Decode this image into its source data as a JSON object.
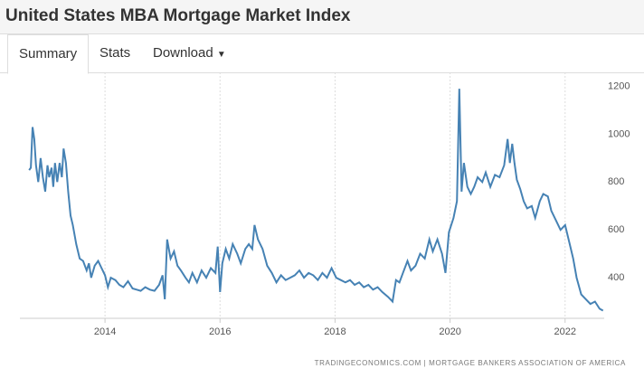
{
  "header": {
    "title": "United States MBA Mortgage Market Index"
  },
  "tabs": [
    "Summary",
    "Stats",
    "Download"
  ],
  "chart_data": {
    "type": "line",
    "x": [
      2012.68,
      2012.71,
      2012.74,
      2012.77,
      2012.8,
      2012.84,
      2012.88,
      2012.92,
      2012.96,
      2013.0,
      2013.03,
      2013.07,
      2013.1,
      2013.13,
      2013.17,
      2013.21,
      2013.25,
      2013.28,
      2013.32,
      2013.36,
      2013.4,
      2013.44,
      2013.5,
      2013.56,
      2013.62,
      2013.68,
      2013.72,
      2013.76,
      2013.82,
      2013.88,
      2013.94,
      2014.0,
      2014.05,
      2014.1,
      2014.18,
      2014.25,
      2014.32,
      2014.4,
      2014.48,
      2014.55,
      2014.62,
      2014.7,
      2014.78,
      2014.86,
      2014.94,
      2015.0,
      2015.04,
      2015.08,
      2015.14,
      2015.2,
      2015.26,
      2015.32,
      2015.4,
      2015.46,
      2015.52,
      2015.6,
      2015.68,
      2015.76,
      2015.84,
      2015.92,
      2015.96,
      2016.0,
      2016.04,
      2016.1,
      2016.16,
      2016.22,
      2016.3,
      2016.36,
      2016.44,
      2016.5,
      2016.56,
      2016.6,
      2016.66,
      2016.74,
      2016.82,
      2016.9,
      2016.98,
      2017.06,
      2017.14,
      2017.22,
      2017.3,
      2017.38,
      2017.46,
      2017.54,
      2017.62,
      2017.7,
      2017.78,
      2017.86,
      2017.94,
      2018.02,
      2018.1,
      2018.18,
      2018.26,
      2018.34,
      2018.42,
      2018.5,
      2018.58,
      2018.66,
      2018.74,
      2018.82,
      2018.92,
      2019.0,
      2019.06,
      2019.12,
      2019.18,
      2019.26,
      2019.32,
      2019.4,
      2019.48,
      2019.56,
      2019.64,
      2019.7,
      2019.78,
      2019.86,
      2019.92,
      2019.98,
      2020.06,
      2020.12,
      2020.16,
      2020.2,
      2020.24,
      2020.3,
      2020.36,
      2020.42,
      2020.48,
      2020.56,
      2020.62,
      2020.7,
      2020.78,
      2020.86,
      2020.94,
      2021.0,
      2021.04,
      2021.08,
      2021.12,
      2021.16,
      2021.22,
      2021.28,
      2021.34,
      2021.42,
      2021.48,
      2021.56,
      2021.62,
      2021.7,
      2021.76,
      2021.84,
      2021.92,
      2022.0,
      2022.08,
      2022.14,
      2022.2,
      2022.28,
      2022.36,
      2022.44,
      2022.52,
      2022.6,
      2022.66
    ],
    "values": [
      850,
      860,
      1030,
      980,
      870,
      800,
      900,
      820,
      760,
      870,
      820,
      860,
      780,
      880,
      800,
      880,
      820,
      940,
      880,
      760,
      660,
      620,
      540,
      480,
      470,
      430,
      460,
      400,
      450,
      470,
      440,
      410,
      360,
      400,
      390,
      370,
      360,
      385,
      355,
      350,
      345,
      360,
      350,
      345,
      370,
      410,
      310,
      560,
      480,
      510,
      450,
      430,
      400,
      380,
      420,
      380,
      430,
      400,
      440,
      420,
      530,
      340,
      460,
      520,
      480,
      540,
      500,
      460,
      520,
      540,
      520,
      620,
      560,
      520,
      450,
      420,
      380,
      410,
      390,
      400,
      410,
      430,
      400,
      420,
      410,
      390,
      420,
      400,
      440,
      400,
      390,
      380,
      390,
      370,
      380,
      360,
      370,
      350,
      360,
      340,
      320,
      300,
      390,
      380,
      420,
      470,
      430,
      450,
      500,
      480,
      560,
      510,
      560,
      500,
      420,
      590,
      650,
      720,
      1190,
      760,
      880,
      780,
      750,
      780,
      820,
      800,
      840,
      780,
      830,
      820,
      870,
      980,
      880,
      960,
      880,
      810,
      770,
      720,
      690,
      700,
      650,
      720,
      750,
      740,
      680,
      640,
      600,
      620,
      540,
      480,
      400,
      330,
      310,
      290,
      300,
      270,
      262
    ],
    "color": "#4682b4",
    "xlim": [
      2012.52,
      2022.68
    ],
    "xticks": [
      2014,
      2016,
      2018,
      2020,
      2022
    ],
    "ylim": [
      230,
      1240
    ],
    "yticks": [
      400,
      600,
      800,
      1000,
      1200
    ],
    "grid": true,
    "source": "TRADINGECONOMICS.COM | MORTGAGE BANKERS ASSOCIATION OF AMERICA"
  }
}
